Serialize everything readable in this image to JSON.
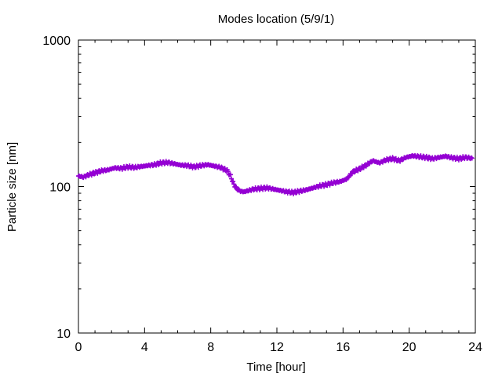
{
  "chart_data": {
    "type": "scatter",
    "title": "Modes location (5/9/1)",
    "xlabel": "Time [hour]",
    "ylabel": "Particle size [nm]",
    "xlim": [
      0,
      24
    ],
    "ylim": [
      10,
      1000
    ],
    "yscale": "log",
    "x_ticks": [
      0,
      4,
      8,
      12,
      16,
      20,
      24
    ],
    "x_tick_labels": [
      "0",
      "4",
      "8",
      "12",
      "16",
      "20",
      "24"
    ],
    "y_ticks": [
      10,
      100,
      1000
    ],
    "y_tick_labels": [
      "10",
      "100",
      "1000"
    ],
    "grid": false,
    "marker": "plus",
    "color": "#9400d3",
    "series": [
      {
        "x": [
          0.0,
          0.3,
          0.6,
          1.0,
          1.4,
          1.8,
          2.2,
          2.6,
          3.0,
          3.4,
          3.8,
          4.2,
          4.6,
          5.0,
          5.4,
          5.8,
          6.2,
          6.6,
          7.0,
          7.4,
          7.8,
          8.2,
          8.6,
          9.0,
          9.2,
          9.4,
          9.6,
          9.8,
          10.0,
          10.3,
          10.6,
          11.0,
          11.4,
          11.8,
          12.2,
          12.6,
          13.0,
          13.4,
          13.8,
          14.2,
          14.6,
          15.0,
          15.4,
          15.8,
          16.2,
          16.6,
          17.0,
          17.4,
          17.8,
          18.2,
          18.6,
          19.0,
          19.4,
          19.8,
          20.2,
          20.6,
          21.0,
          21.4,
          21.8,
          22.2,
          22.6,
          23.0,
          23.4,
          23.8
        ],
        "y": [
          118,
          116,
          120,
          124,
          128,
          130,
          134,
          133,
          136,
          135,
          137,
          139,
          141,
          145,
          146,
          143,
          140,
          139,
          136,
          139,
          141,
          138,
          135,
          128,
          118,
          103,
          96,
          93,
          92,
          94,
          96,
          97,
          98,
          96,
          94,
          92,
          91,
          93,
          95,
          98,
          101,
          103,
          106,
          108,
          112,
          126,
          132,
          140,
          150,
          145,
          152,
          155,
          150,
          158,
          162,
          160,
          158,
          155,
          158,
          161,
          157,
          155,
          158,
          156
        ]
      }
    ]
  }
}
